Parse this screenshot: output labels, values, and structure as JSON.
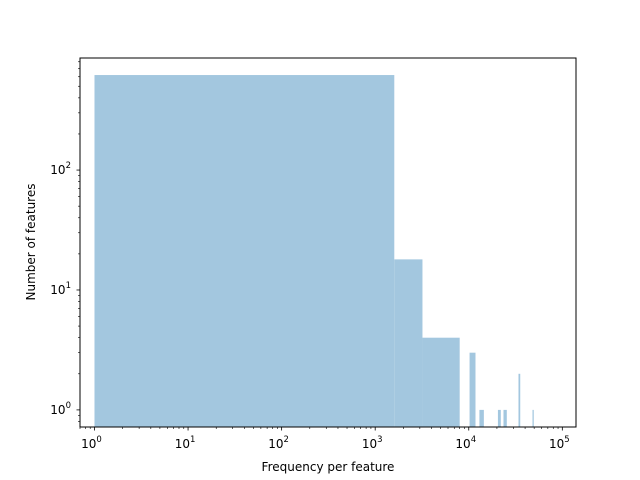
{
  "chart_data": {
    "type": "bar",
    "title": "",
    "xlabel": "Frequency per feature",
    "ylabel": "Number of features",
    "x_scale": "log",
    "y_scale": "log",
    "xlim": [
      0.7,
      140000
    ],
    "ylim": [
      0.72,
      860
    ],
    "grid": false,
    "legend": "none",
    "bar_color": "#a3c7df",
    "x_ticks": [
      {
        "value": 1,
        "base": "10",
        "exp": "0"
      },
      {
        "value": 10,
        "base": "10",
        "exp": "1"
      },
      {
        "value": 100,
        "base": "10",
        "exp": "2"
      },
      {
        "value": 1000,
        "base": "10",
        "exp": "3"
      },
      {
        "value": 10000,
        "base": "10",
        "exp": "4"
      },
      {
        "value": 100000,
        "base": "10",
        "exp": "5"
      }
    ],
    "y_ticks": [
      {
        "value": 1,
        "base": "10",
        "exp": "0"
      },
      {
        "value": 10,
        "base": "10",
        "exp": "1"
      },
      {
        "value": 100,
        "base": "10",
        "exp": "2"
      }
    ],
    "bins": [
      {
        "x0": 1,
        "x1": 1600,
        "count": 620
      },
      {
        "x0": 1600,
        "x1": 3200,
        "count": 18
      },
      {
        "x0": 3200,
        "x1": 8000,
        "count": 4
      },
      {
        "x0": 10200,
        "x1": 11800,
        "count": 3
      },
      {
        "x0": 13000,
        "x1": 14500,
        "count": 1
      },
      {
        "x0": 20500,
        "x1": 22000,
        "count": 1
      },
      {
        "x0": 23500,
        "x1": 25500,
        "count": 1
      },
      {
        "x0": 34000,
        "x1": 35500,
        "count": 2
      },
      {
        "x0": 48000,
        "x1": 49500,
        "count": 1
      }
    ]
  }
}
